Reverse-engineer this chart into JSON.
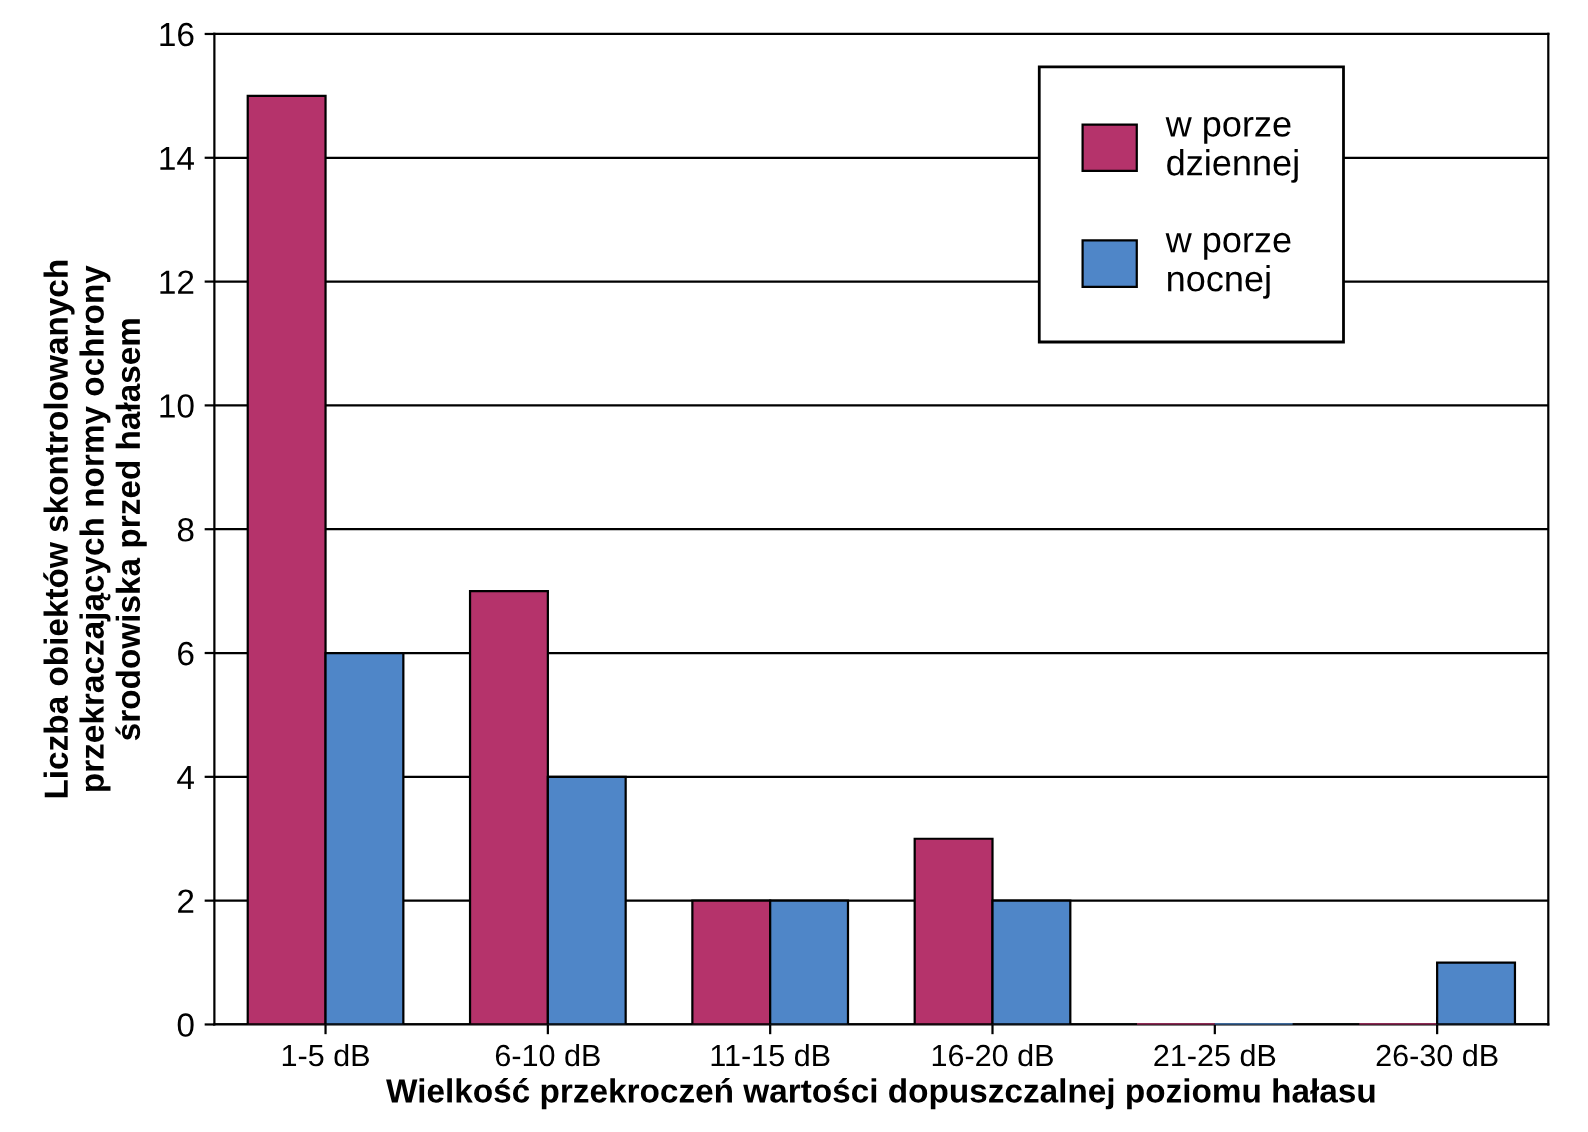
{
  "chart_data": {
    "type": "bar",
    "xlabel": "Wielkość przekroczeń wartości dopuszczalnej poziomu hałasu",
    "ylabel": "Liczba obiektów skontrolowanych\nprzekraczających normy ochrony\nśrodowiska przed hałasem",
    "categories": [
      "1-5 dB",
      "6-10 dB",
      "11-15 dB",
      "16-20 dB",
      "21-25 dB",
      "26-30 dB"
    ],
    "series": [
      {
        "name": "w porze\ndziennej",
        "color": "#b5336b",
        "values": [
          15,
          7,
          2,
          3,
          0,
          0
        ]
      },
      {
        "name": "w porze\nnocnej",
        "color": "#4f86c8",
        "values": [
          6,
          4,
          2,
          2,
          0,
          1
        ]
      }
    ],
    "ylim": [
      0,
      16
    ],
    "yticks": [
      0,
      2,
      4,
      6,
      8,
      10,
      12,
      14,
      16
    ],
    "grid": "y",
    "legend": "top right"
  }
}
